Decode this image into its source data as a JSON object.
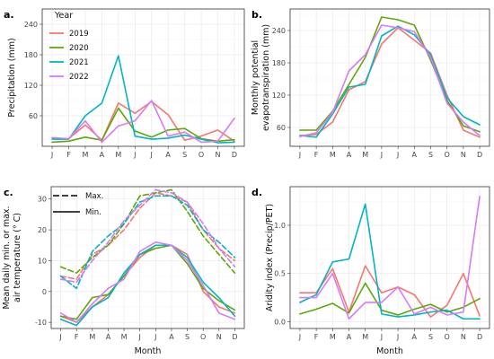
{
  "colors": {
    "2019": "#F8766D",
    "2020": "#5DA708",
    "2021": "#00B5C4",
    "2022": "#D77AF6"
  },
  "legend_year": {
    "title": "Year",
    "entries": [
      "2019",
      "2020",
      "2021",
      "2022"
    ]
  },
  "legend_line": {
    "entries": [
      {
        "label": "Max.",
        "dash": "dashed"
      },
      {
        "label": "Min.",
        "dash": "solid"
      }
    ]
  },
  "months": [
    "J",
    "F",
    "M",
    "A",
    "M",
    "J",
    "J",
    "A",
    "S",
    "O",
    "N",
    "D"
  ],
  "chart_data": [
    {
      "panel": "a.",
      "type": "line",
      "xlabel": "",
      "ylabel": "Precipitation (mm)",
      "ylim": [
        0,
        270
      ],
      "yticks": [
        60,
        120,
        180,
        240
      ],
      "grid": true,
      "legend": "top-left",
      "categories": [
        "J",
        "F",
        "M",
        "A",
        "M",
        "J",
        "J",
        "A",
        "S",
        "O",
        "N",
        "D"
      ],
      "series": [
        {
          "name": "2019",
          "values": [
            16,
            15,
            42,
            12,
            85,
            65,
            88,
            62,
            12,
            20,
            32,
            10
          ]
        },
        {
          "name": "2020",
          "values": [
            8,
            10,
            18,
            12,
            75,
            30,
            18,
            32,
            35,
            15,
            10,
            13
          ]
        },
        {
          "name": "2021",
          "values": [
            14,
            14,
            60,
            85,
            178,
            20,
            14,
            16,
            22,
            14,
            7,
            8
          ]
        },
        {
          "name": "2022",
          "values": [
            17,
            15,
            50,
            8,
            40,
            50,
            90,
            20,
            28,
            8,
            10,
            55
          ]
        }
      ]
    },
    {
      "panel": "b.",
      "type": "line",
      "xlabel": "",
      "ylabel": "Monthly potential\nevapotranspiration (mm)",
      "ylim": [
        25,
        280
      ],
      "yticks": [
        60,
        120,
        180,
        240
      ],
      "grid": true,
      "categories": [
        "J",
        "F",
        "M",
        "A",
        "M",
        "J",
        "J",
        "A",
        "S",
        "O",
        "N",
        "D"
      ],
      "series": [
        {
          "name": "2019",
          "values": [
            45,
            47,
            70,
            130,
            145,
            215,
            245,
            222,
            198,
            120,
            55,
            42
          ]
        },
        {
          "name": "2020",
          "values": [
            55,
            55,
            90,
            140,
            190,
            265,
            260,
            250,
            185,
            110,
            63,
            52
          ]
        },
        {
          "name": "2021",
          "values": [
            45,
            42,
            85,
            135,
            140,
            230,
            248,
            232,
            195,
            115,
            80,
            65
          ]
        },
        {
          "name": "2022",
          "values": [
            43,
            50,
            88,
            165,
            195,
            250,
            245,
            238,
            190,
            105,
            70,
            45
          ]
        }
      ]
    },
    {
      "panel": "c.",
      "type": "line",
      "xlabel": "Month",
      "ylabel": "Mean daily min. or max.\nair temperature (° C)",
      "ylim": [
        -12,
        34
      ],
      "yticks": [
        -10,
        0,
        10,
        20,
        30
      ],
      "grid": true,
      "legend": "top-left",
      "categories": [
        "J",
        "F",
        "M",
        "A",
        "M",
        "J",
        "J",
        "A",
        "S",
        "O",
        "N",
        "D"
      ],
      "series": [
        {
          "name": "2019",
          "line": "Max.",
          "values": [
            5,
            4,
            12,
            15,
            20,
            27,
            32,
            31,
            29,
            20,
            14,
            10
          ]
        },
        {
          "name": "2020",
          "line": "Max.",
          "values": [
            8,
            6,
            11,
            15,
            22,
            31,
            32,
            33,
            26,
            18,
            12,
            6
          ]
        },
        {
          "name": "2021",
          "line": "Max.",
          "values": [
            5,
            1,
            13,
            18,
            22,
            29,
            31,
            31,
            28,
            20,
            16,
            11
          ]
        },
        {
          "name": "2022",
          "line": "Max.",
          "values": [
            4,
            3,
            10,
            16,
            23,
            28,
            33,
            32,
            29,
            22,
            14,
            8
          ]
        },
        {
          "name": "2019",
          "line": "Min.",
          "values": [
            -8,
            -10,
            -5,
            -1,
            5,
            11,
            15,
            15,
            12,
            0,
            -5,
            -7
          ]
        },
        {
          "name": "2020",
          "line": "Min.",
          "values": [
            -8,
            -9,
            -2,
            -1,
            5,
            12,
            14,
            15,
            9,
            1,
            -3,
            -6
          ]
        },
        {
          "name": "2021",
          "line": "Min.",
          "values": [
            -9,
            -11,
            -5,
            -2,
            6,
            12,
            15,
            15,
            11,
            3,
            -2,
            -8
          ]
        },
        {
          "name": "2022",
          "line": "Min.",
          "values": [
            -7,
            -10,
            -4,
            1,
            4,
            13,
            16,
            15,
            10,
            2,
            -7,
            -9
          ]
        }
      ]
    },
    {
      "panel": "d.",
      "type": "line",
      "xlabel": "Month",
      "ylabel": "Aridity index (Precip/PET)",
      "ylim": [
        -0.07,
        1.4
      ],
      "yticks": [
        0.0,
        0.5,
        1.0
      ],
      "ytick_labels": [
        "0.0",
        "0.5",
        "1.0"
      ],
      "grid": true,
      "categories": [
        "J",
        "F",
        "M",
        "A",
        "M",
        "J",
        "J",
        "A",
        "S",
        "O",
        "N",
        "D"
      ],
      "series": [
        {
          "name": "2019",
          "values": [
            0.3,
            0.3,
            0.55,
            0.1,
            0.58,
            0.3,
            0.36,
            0.28,
            0.05,
            0.17,
            0.5,
            0.06
          ]
        },
        {
          "name": "2020",
          "values": [
            0.08,
            0.13,
            0.19,
            0.09,
            0.4,
            0.12,
            0.07,
            0.13,
            0.18,
            0.1,
            0.15,
            0.24
          ]
        },
        {
          "name": "2021",
          "values": [
            0.2,
            0.28,
            0.62,
            0.65,
            1.22,
            0.08,
            0.05,
            0.07,
            0.1,
            0.12,
            0.03,
            0.03
          ]
        },
        {
          "name": "2022",
          "values": [
            0.25,
            0.25,
            0.5,
            0.03,
            0.2,
            0.2,
            0.36,
            0.08,
            0.15,
            0.07,
            0.1,
            1.3
          ]
        }
      ]
    }
  ]
}
